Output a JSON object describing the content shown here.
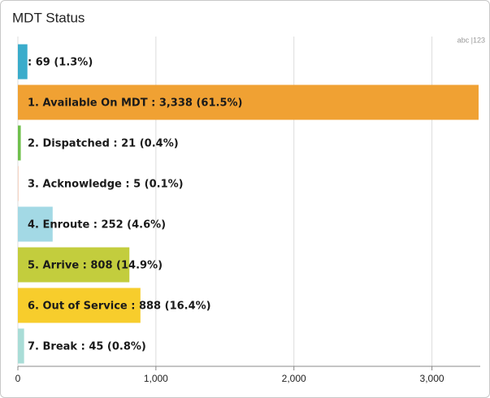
{
  "chart_data": {
    "type": "hbar",
    "title": "MDT Status",
    "values": [
      69,
      3338,
      21,
      5,
      252,
      808,
      888,
      45
    ],
    "value_labels": [
      ": 69 (1.3%)",
      "1. Available On MDT : 3,338 (61.5%)",
      "2. Dispatched : 21 (0.4%)",
      "3. Acknowledge : 5 (0.1%)",
      "4. Enroute : 252 (4.6%)",
      "5. Arrive : 808 (14.9%)",
      "6. Out of Service : 888 (16.4%)",
      "7. Break : 45 (0.8%)"
    ],
    "colors": [
      "#3aaccb",
      "#f0a133",
      "#6fc04c",
      "#f5cdb8",
      "#a3d9e5",
      "#c3cd3d",
      "#f7cd2c",
      "#a9ddd7"
    ],
    "xlim": [
      0,
      3350
    ],
    "xticks": [
      0,
      {
        "value": 1000,
        "label": "1,000"
      },
      {
        "value": 2000,
        "label": "2,000"
      },
      {
        "value": 3000,
        "label": "3,000"
      }
    ],
    "grid": true
  },
  "toggle": "abc |123"
}
